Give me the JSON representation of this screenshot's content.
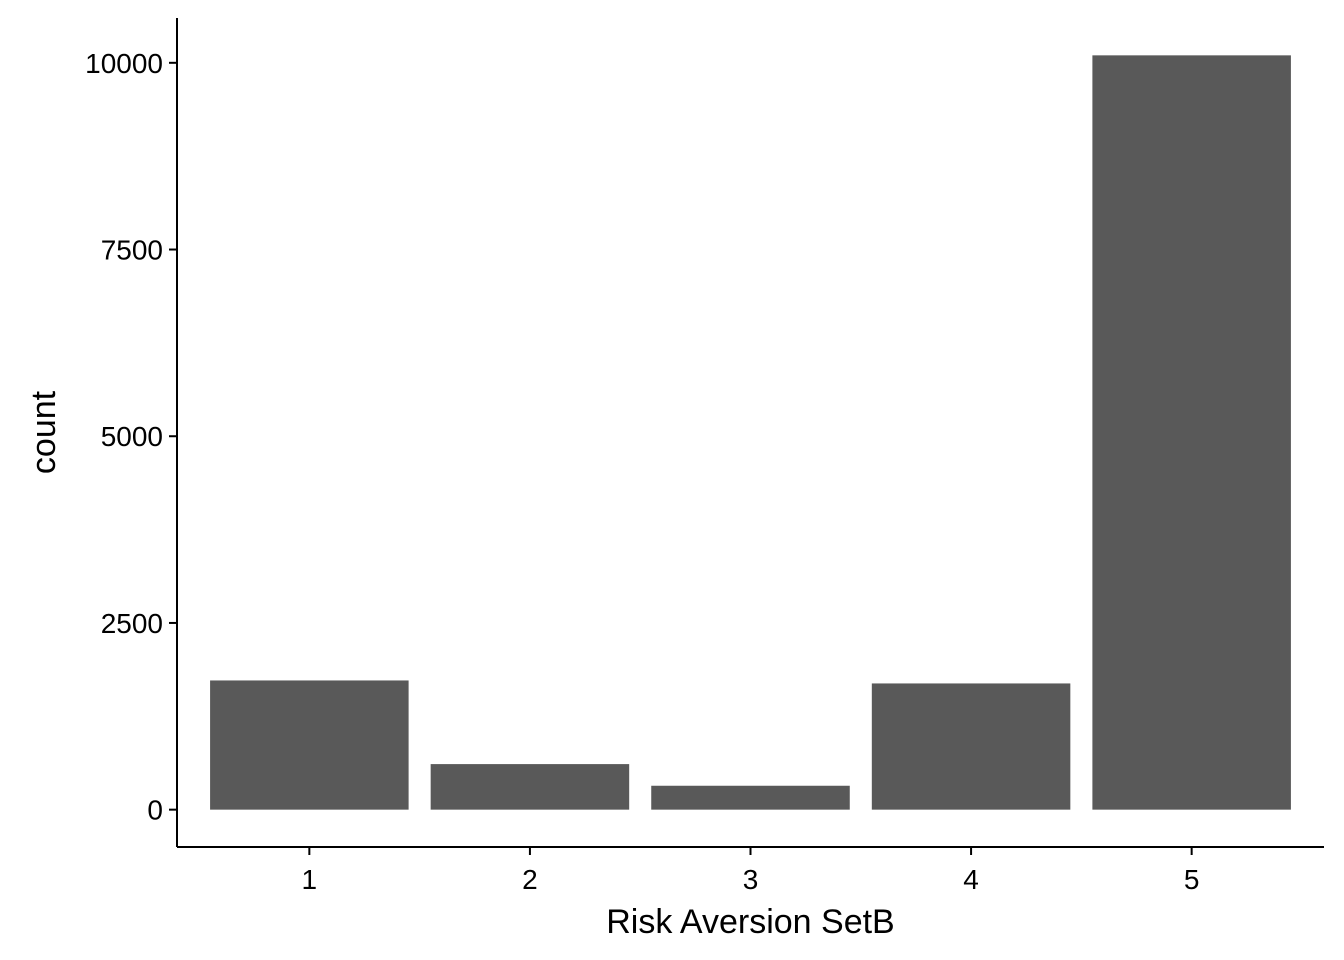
{
  "chart_data": {
    "type": "bar",
    "categories": [
      "1",
      "2",
      "3",
      "4",
      "5"
    ],
    "values": [
      1730,
      610,
      320,
      1690,
      10100
    ],
    "title": "",
    "xlabel": "Risk Aversion SetB",
    "ylabel": "count",
    "ylim": [
      -500,
      10600
    ],
    "yticks": [
      0,
      2500,
      5000,
      7500,
      10000
    ],
    "ytick_labels": [
      "0",
      "2500",
      "5000",
      "7500",
      "10000"
    ],
    "bar_color": "#595959",
    "grid": false,
    "legend": "none"
  }
}
